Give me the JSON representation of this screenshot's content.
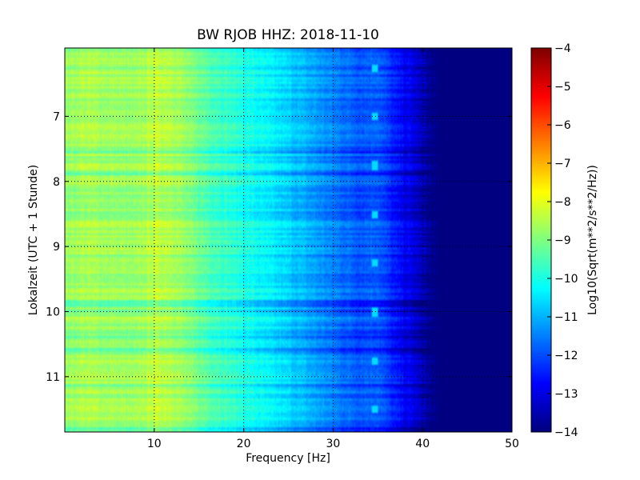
{
  "chart_data": {
    "type": "heatmap",
    "title": "BW RJOB HHZ: 2018-11-10",
    "xlabel": "Frequency [Hz]",
    "ylabel": "Lokalzeit (UTC + 1 Stunde)",
    "colorbar_label": "Log10(Sqrt(m**2/s**2/Hz))",
    "colormap": "jet",
    "xlim": [
      0,
      50
    ],
    "ylim": [
      5.95,
      11.85
    ],
    "y_inverted": true,
    "clim": [
      -14,
      -4
    ],
    "x_ticks": [
      {
        "value": 10,
        "label": "10"
      },
      {
        "value": 20,
        "label": "20"
      },
      {
        "value": 30,
        "label": "30"
      },
      {
        "value": 40,
        "label": "40"
      },
      {
        "value": 50,
        "label": "50"
      }
    ],
    "y_ticks": [
      {
        "value": 7,
        "label": "7"
      },
      {
        "value": 8,
        "label": "8"
      },
      {
        "value": 9,
        "label": "9"
      },
      {
        "value": 10,
        "label": "10"
      },
      {
        "value": 11,
        "label": "11"
      }
    ],
    "colorbar_ticks": [
      {
        "value": -4,
        "label": "−4"
      },
      {
        "value": -5,
        "label": "−5"
      },
      {
        "value": -6,
        "label": "−6"
      },
      {
        "value": -7,
        "label": "−7"
      },
      {
        "value": -8,
        "label": "−8"
      },
      {
        "value": -9,
        "label": "−9"
      },
      {
        "value": -10,
        "label": "−10"
      },
      {
        "value": -11,
        "label": "−11"
      },
      {
        "value": -12,
        "label": "−12"
      },
      {
        "value": -13,
        "label": "−13"
      },
      {
        "value": -14,
        "label": "−14"
      }
    ],
    "grid": true,
    "spectrum_profile": {
      "frequency_hz": [
        0,
        2,
        5,
        8,
        10,
        12,
        14,
        16,
        20,
        25,
        30,
        33,
        35,
        37,
        39,
        40,
        41,
        42,
        50
      ],
      "log_psd": [
        -8.8,
        -8.6,
        -8.7,
        -8.8,
        -8.4,
        -8.5,
        -9.0,
        -9.4,
        -10.0,
        -10.7,
        -11.5,
        -11.9,
        -11.8,
        -12.6,
        -13.1,
        -13.5,
        -13.9,
        -14.0,
        -14.0
      ]
    },
    "tonal_line": {
      "frequency_hz": 34.6,
      "log_psd": -10.6
    }
  }
}
